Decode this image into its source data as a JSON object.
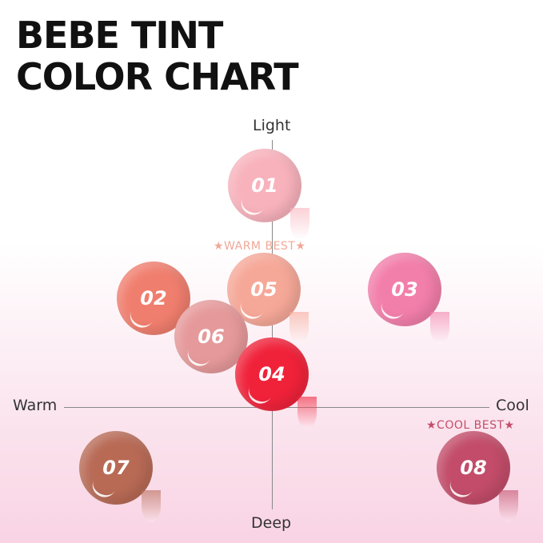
{
  "title_line1": "BEBE TINT",
  "title_line2": "COLOR CHART",
  "axes": {
    "top": "Light",
    "bottom": "Deep",
    "left": "Warm",
    "right": "Cool"
  },
  "badges": {
    "warm_best": "★WARM BEST★",
    "cool_best": "★COOL BEST★",
    "warm_color": "#f0a898",
    "cool_color": "#c34d6a"
  },
  "swatches": [
    {
      "label": "01",
      "color": "#f8b2bc"
    },
    {
      "label": "02",
      "color": "#f07e6e"
    },
    {
      "label": "03",
      "color": "#f27eaa"
    },
    {
      "label": "04",
      "color": "#f0223a"
    },
    {
      "label": "05",
      "color": "#f6a898"
    },
    {
      "label": "06",
      "color": "#e6999a"
    },
    {
      "label": "07",
      "color": "#b86a55"
    },
    {
      "label": "08",
      "color": "#c24c69"
    }
  ]
}
